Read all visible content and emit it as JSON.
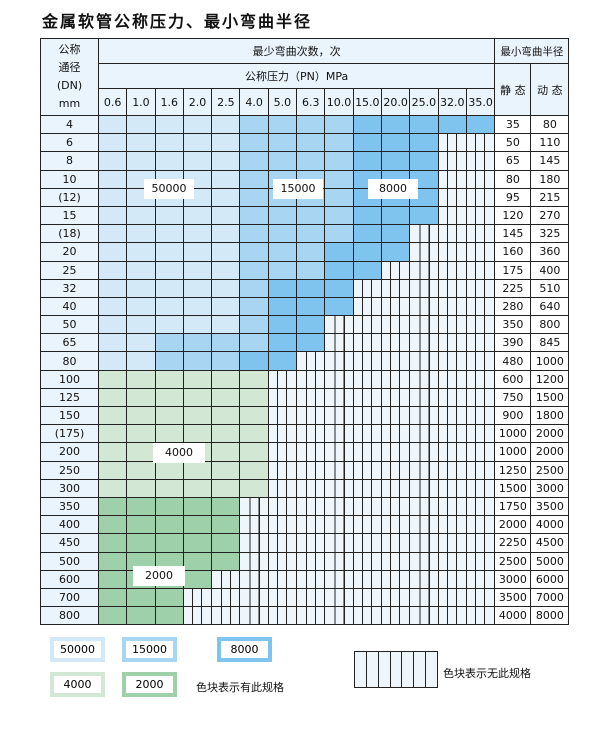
{
  "title": "金属软管公称压力、最小弯曲半径",
  "header": {
    "dn_label_lines": [
      "公称",
      "通径",
      "(DN)",
      "mm"
    ],
    "cycles_label": "最少弯曲次数，次",
    "pressure_label": "公称压力（PN）MPa",
    "radius_label": "最小弯曲半径",
    "static_label": "静 态",
    "dynamic_label": "动 态",
    "pressures": [
      "0.6",
      "1.0",
      "1.6",
      "2.0",
      "2.5",
      "4.0",
      "5.0",
      "6.3",
      "10.0",
      "15.0",
      "20.0",
      "25.0",
      "32.0",
      "35.0"
    ]
  },
  "tier_colors": {
    "L": "#d3e9f8",
    "M": "#a8d5f2",
    "D": "#7ec4ee",
    "g": "#d2e8d4",
    "G": "#9ed1a9"
  },
  "tier_values": {
    "L": "50000",
    "M": "15000",
    "D": "8000",
    "g": "4000",
    "G": "2000"
  },
  "rows": [
    {
      "dn": "4",
      "static": "35",
      "dynamic": "80",
      "tiers": "LLLLLMMMMDDDDD"
    },
    {
      "dn": "6",
      "static": "50",
      "dynamic": "110",
      "tiers": "LLLLLMMMMDDD"
    },
    {
      "dn": "8",
      "static": "65",
      "dynamic": "145",
      "tiers": "LLLLLMMMMDDD"
    },
    {
      "dn": "10",
      "static": "80",
      "dynamic": "180",
      "tiers": "LLLLLMMMMDDD"
    },
    {
      "dn": "(12)",
      "static": "95",
      "dynamic": "215",
      "tiers": "LLLLLMMMMDDD"
    },
    {
      "dn": "15",
      "static": "120",
      "dynamic": "270",
      "tiers": "LLLLLMMMMDDD"
    },
    {
      "dn": "(18)",
      "static": "145",
      "dynamic": "325",
      "tiers": "LLLLLMMMMDD"
    },
    {
      "dn": "20",
      "static": "160",
      "dynamic": "360",
      "tiers": "LLLLLMMMDDD"
    },
    {
      "dn": "25",
      "static": "175",
      "dynamic": "400",
      "tiers": "LLLLLMMMDD"
    },
    {
      "dn": "32",
      "static": "225",
      "dynamic": "510",
      "tiers": "LLLLLMDDD"
    },
    {
      "dn": "40",
      "static": "280",
      "dynamic": "640",
      "tiers": "LLLLLMDDD"
    },
    {
      "dn": "50",
      "static": "350",
      "dynamic": "800",
      "tiers": "LLLLLMDD"
    },
    {
      "dn": "65",
      "static": "390",
      "dynamic": "845",
      "tiers": "LLMMMMDD"
    },
    {
      "dn": "80",
      "static": "480",
      "dynamic": "1000",
      "tiers": "LLMMMDD"
    },
    {
      "dn": "100",
      "static": "600",
      "dynamic": "1200",
      "tiers": "gggggg"
    },
    {
      "dn": "125",
      "static": "750",
      "dynamic": "1500",
      "tiers": "gggggg"
    },
    {
      "dn": "150",
      "static": "900",
      "dynamic": "1800",
      "tiers": "gggggg"
    },
    {
      "dn": "(175)",
      "static": "1000",
      "dynamic": "2000",
      "tiers": "gggggg"
    },
    {
      "dn": "200",
      "static": "1000",
      "dynamic": "2000",
      "tiers": "gggggg"
    },
    {
      "dn": "250",
      "static": "1250",
      "dynamic": "2500",
      "tiers": "gggggg"
    },
    {
      "dn": "300",
      "static": "1500",
      "dynamic": "3000",
      "tiers": "gggggg"
    },
    {
      "dn": "350",
      "static": "1750",
      "dynamic": "3500",
      "tiers": "GGGGG"
    },
    {
      "dn": "400",
      "static": "2000",
      "dynamic": "4000",
      "tiers": "GGGGG"
    },
    {
      "dn": "450",
      "static": "2250",
      "dynamic": "4500",
      "tiers": "GGGGG"
    },
    {
      "dn": "500",
      "static": "2500",
      "dynamic": "5000",
      "tiers": "GGGGG"
    },
    {
      "dn": "600",
      "static": "3000",
      "dynamic": "6000",
      "tiers": "GGGG"
    },
    {
      "dn": "700",
      "static": "3500",
      "dynamic": "7000",
      "tiers": "GGG"
    },
    {
      "dn": "800",
      "static": "4000",
      "dynamic": "8000",
      "tiers": "GGG"
    }
  ],
  "region_labels": {
    "l50000": "50000",
    "l15000": "15000",
    "l8000": "8000",
    "l4000": "4000",
    "l2000": "2000"
  },
  "legend": {
    "items": [
      "50000",
      "15000",
      "8000",
      "4000",
      "2000"
    ],
    "available_text": "色块表示有此规格",
    "unavailable_text": "色块表示无此规格"
  }
}
